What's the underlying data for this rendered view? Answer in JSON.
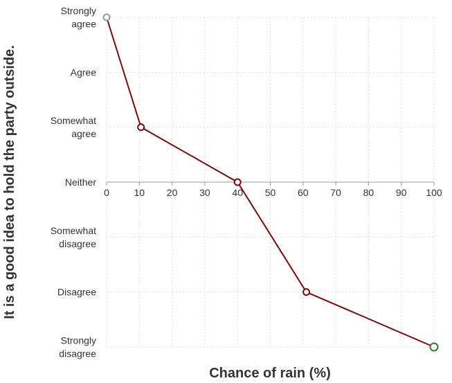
{
  "chart_data": {
    "type": "line",
    "title": "",
    "xlabel": "Chance of rain (%)",
    "ylabel": "It is a good idea to hold the party outside.",
    "xlim": [
      0,
      100
    ],
    "xticks": [
      0,
      10,
      20,
      30,
      40,
      50,
      60,
      70,
      80,
      90,
      100
    ],
    "yticks": [
      [
        "Strongly",
        "agree"
      ],
      [
        "Agree"
      ],
      [
        "Somewhat",
        "agree"
      ],
      [
        "Neither"
      ],
      [
        "Somewhat",
        "disagree"
      ],
      [
        "Disagree"
      ],
      [
        "Strongly",
        "disagree"
      ]
    ],
    "ylim": [
      -3,
      3
    ],
    "grid": true,
    "legend": "none",
    "series": [
      {
        "x": [
          0,
          10.5,
          40,
          61,
          100
        ],
        "y": [
          3,
          1,
          0,
          -2,
          -3
        ],
        "line_color": "#7a0a0a",
        "marker_colors": [
          "#999999",
          "#7a0a0a",
          "#7a0a0a",
          "#7a0a0a",
          "#2e7d32"
        ]
      }
    ]
  }
}
